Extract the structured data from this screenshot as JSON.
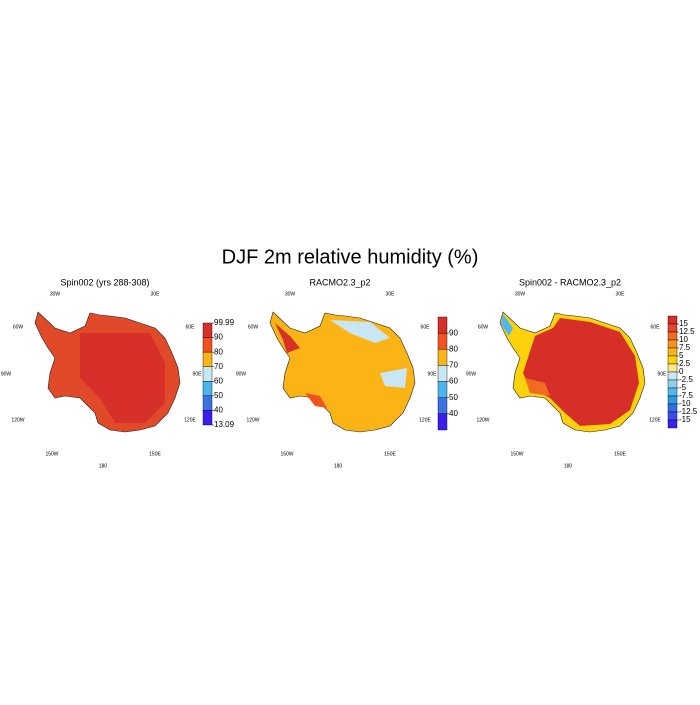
{
  "title": "DJF 2m relative humidity (%)",
  "coordinate_labels": [
    "30W",
    "30E",
    "60W",
    "60E",
    "90W",
    "90E",
    "120W",
    "120E",
    "150W",
    "150E",
    "180"
  ],
  "panels": [
    {
      "title": "Spin002 (yrs 288-308)",
      "colorbar": {
        "labels": [
          99.99,
          90,
          80,
          70,
          60,
          50,
          40,
          13.09
        ],
        "colors": [
          "#d7302a",
          "#f1521f",
          "#fbb315",
          "#c9e6f4",
          "#4cb6ec",
          "#3a72e2",
          "#3a1ef0"
        ]
      }
    },
    {
      "title": "RACMO2.3_p2",
      "colorbar": {
        "labels": [
          90,
          80,
          70,
          60,
          50,
          40
        ],
        "colors": [
          "#d7302a",
          "#f1521f",
          "#fbb315",
          "#c9e6f4",
          "#4cb6ec",
          "#3a72e2",
          "#3a1ef0"
        ]
      }
    },
    {
      "title": "Spin002 - RACMO2.3_p2",
      "colorbar": {
        "labels": [
          15,
          12.5,
          10,
          7.5,
          5,
          2.5,
          0,
          -2.5,
          -5,
          -7.5,
          -10,
          -12.5,
          -15
        ],
        "colors": [
          "#d62f27",
          "#e8462a",
          "#f26b22",
          "#f7941d",
          "#fbb216",
          "#fdd20a",
          "#fee88a",
          "#c7e9f6",
          "#8fd0f0",
          "#4fb8ec",
          "#2e9ae0",
          "#2f6fe0",
          "#3a4cf0",
          "#3a1ef0"
        ]
      }
    }
  ]
}
